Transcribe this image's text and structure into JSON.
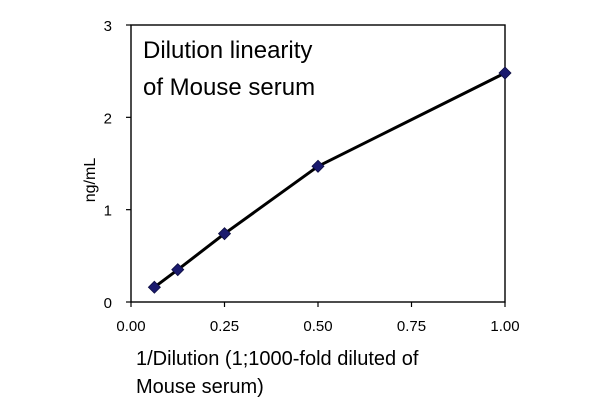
{
  "chart_data": {
    "type": "line",
    "title_lines": [
      "Dilution linearity",
      "of Mouse serum"
    ],
    "xlabel_lines": [
      "1/Dilution (1;1000-fold diluted of",
      "Mouse serum)"
    ],
    "ylabel": "ng/mL",
    "xlim": [
      0,
      1
    ],
    "ylim": [
      0,
      3
    ],
    "x_ticks": [
      0,
      0.25,
      0.5,
      0.75,
      1
    ],
    "x_tick_labels": [
      "0.00",
      "0.25",
      "0.50",
      "0.75",
      "1.00"
    ],
    "y_ticks": [
      0,
      1,
      2,
      3
    ],
    "y_tick_labels": [
      "0",
      "1",
      "2",
      "3"
    ],
    "grid": false,
    "series": [
      {
        "x": [
          0.0625,
          0.125,
          0.25,
          0.5,
          1.0
        ],
        "y": [
          0.16,
          0.35,
          0.74,
          1.47,
          2.48
        ]
      }
    ],
    "colors": {
      "line": "#000000",
      "marker": "#1a1a6e"
    }
  }
}
